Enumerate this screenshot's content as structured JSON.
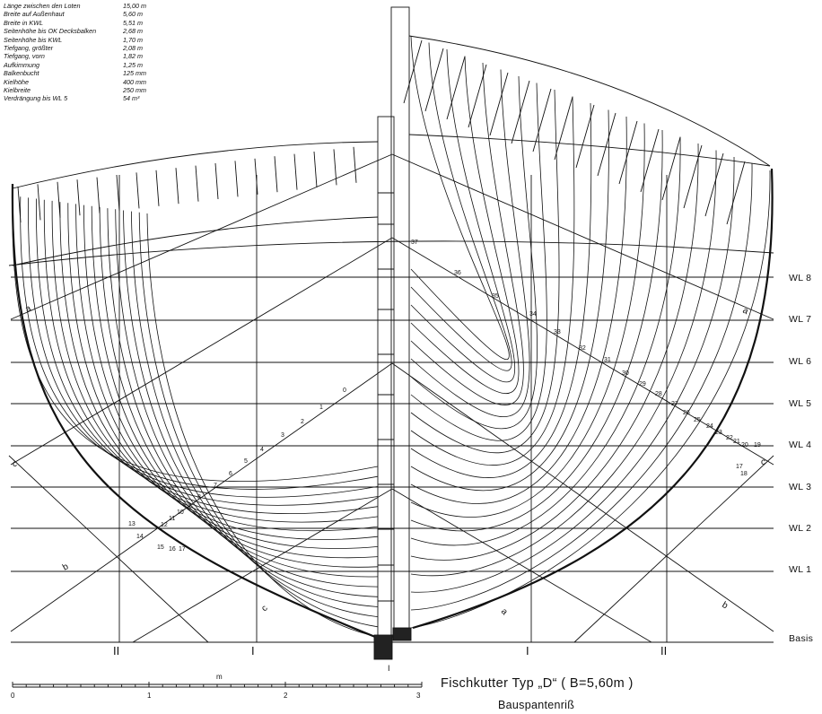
{
  "specs": [
    {
      "label": "Länge zwischen den Loten",
      "value": "15,00 m"
    },
    {
      "label": "Breite auf Außenhaut",
      "value": "5,60 m"
    },
    {
      "label": "Breite in KWL",
      "value": "5,51 m"
    },
    {
      "label": "Seitenhöhe bis OK Decksbalken",
      "value": "2,68 m"
    },
    {
      "label": "Seitenhöhe bis KWL",
      "value": "1,70 m"
    },
    {
      "label": "Tiefgang, größter",
      "value": "2,08 m"
    },
    {
      "label": "Tiefgang, vorn",
      "value": "1,82 m"
    },
    {
      "label": "Aufkimmung",
      "value": "1,25 m"
    },
    {
      "label": "Balkenbucht",
      "value": "125 mm"
    },
    {
      "label": "Kielhöhe",
      "value": "400 mm"
    },
    {
      "label": "Kielbreite",
      "value": "250 mm"
    },
    {
      "label": "Verdrängung bis WL 5",
      "value": "54 m³"
    }
  ],
  "waterlines": [
    "WL 8",
    "WL 7",
    "WL 6",
    "WL 5",
    "WL 4",
    "WL 3",
    "WL 2",
    "WL 1",
    "Basis"
  ],
  "buttock_labels": [
    "II",
    "I",
    "I",
    "II"
  ],
  "diagonal_labels": {
    "a_left": "a",
    "a_right": "a",
    "b_left": "b",
    "b_right": "b",
    "c_left": "c",
    "c_right": "c",
    "centre_mark": "I"
  },
  "aft_frame_numbers": [
    "0",
    "1",
    "2",
    "3",
    "4",
    "5",
    "6",
    "7",
    "8",
    "9",
    "10",
    "11",
    "12",
    "13",
    "14",
    "15",
    "16",
    "17"
  ],
  "fore_frame_numbers": [
    "37",
    "36",
    "35",
    "34",
    "33",
    "32",
    "31",
    "30",
    "29",
    "28",
    "27",
    "26",
    "25",
    "24",
    "23",
    "22",
    "21",
    "20",
    "19",
    "17",
    "18"
  ],
  "scale": {
    "unit": "m",
    "ticks": [
      "0",
      "1",
      "2",
      "3"
    ]
  },
  "title": "Fischkutter  Typ „D“   ( B=5,60m )",
  "subtitle": "Bauspantenriß"
}
